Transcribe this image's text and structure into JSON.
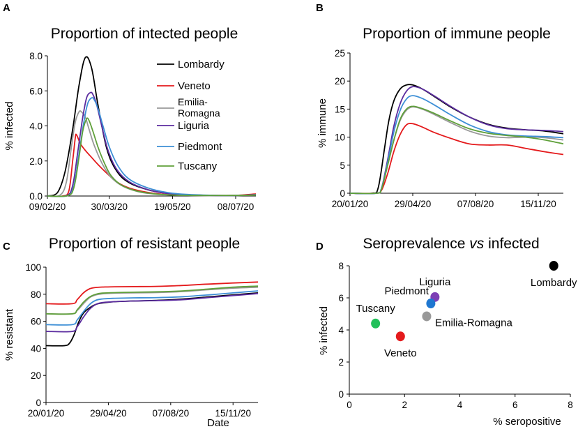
{
  "colors": {
    "Lombardy": "#000000",
    "Veneto": "#e41a1c",
    "Emilia-Romagna": "#999999",
    "Liguria": "#5b2c9f",
    "Piedmont": "#3d8fd6",
    "Tuscany": "#5fa03a",
    "Piedmont_dot": "#1f77d0",
    "Tuscany_dot": "#22c05a"
  },
  "chart_data": [
    {
      "panel": "A",
      "type": "line",
      "title": "Proportion of intected people",
      "ylabel": "% infected",
      "xlabel": "",
      "xlim": [
        0,
        165
      ],
      "ylim": [
        0,
        8
      ],
      "xticks": [
        {
          "label": "09/02/20",
          "x": 0
        },
        {
          "label": "30/03/20",
          "x": 49
        },
        {
          "label": "19/05/20",
          "x": 99
        },
        {
          "label": "08/07/20",
          "x": 149
        }
      ],
      "yticks": [
        {
          "label": "0.0",
          "v": 0
        },
        {
          "label": "2.0",
          "v": 2
        },
        {
          "label": "4.0",
          "v": 4
        },
        {
          "label": "6.0",
          "v": 6
        },
        {
          "label": "8.0",
          "v": 8
        }
      ],
      "legend": {
        "placement": "upper-right",
        "entries": [
          {
            "series": "Lombardy",
            "label": "Lombardy"
          },
          {
            "series": "Veneto",
            "label": "Veneto"
          },
          {
            "series": "Emilia-Romagna",
            "label": "Emilia-",
            "label2": "Romagna"
          },
          {
            "series": "Liguria",
            "label": "Liguria"
          },
          {
            "series": "Piedmont",
            "label": "Piedmont"
          },
          {
            "series": "Tuscany",
            "label": "Tuscany"
          }
        ]
      },
      "series": [
        {
          "name": "Lombardy",
          "x": [
            0,
            8,
            14,
            20,
            25,
            30,
            35,
            40,
            47,
            55,
            65,
            80,
            95,
            110,
            130,
            150,
            165
          ],
          "y": [
            0,
            0.2,
            1.4,
            3.8,
            6.3,
            7.9,
            7.3,
            5.2,
            2.7,
            1.4,
            0.75,
            0.35,
            0.15,
            0.07,
            0.03,
            0.03,
            0.1
          ]
        },
        {
          "name": "Veneto",
          "x": [
            0,
            12,
            17,
            20,
            22,
            23,
            26,
            30,
            35,
            40,
            47,
            55,
            65,
            80,
            95,
            110,
            130,
            150,
            165
          ],
          "y": [
            0,
            0,
            0.3,
            2.0,
            3.3,
            3.5,
            3.0,
            2.6,
            2.2,
            1.8,
            1.3,
            0.8,
            0.45,
            0.2,
            0.08,
            0.04,
            0.03,
            0.04,
            0.12
          ]
        },
        {
          "name": "Emilia-Romagna",
          "x": [
            0,
            10,
            15,
            19,
            22,
            25,
            27,
            30,
            33,
            37,
            43,
            50,
            60,
            75,
            95,
            115,
            140,
            165
          ],
          "y": [
            0,
            0.05,
            0.8,
            2.8,
            4.2,
            4.8,
            4.8,
            4.5,
            3.8,
            2.9,
            1.9,
            1.1,
            0.55,
            0.2,
            0.07,
            0.03,
            0.02,
            0.05
          ]
        },
        {
          "name": "Liguria",
          "x": [
            0,
            15,
            20,
            24,
            28,
            31,
            34,
            36,
            39,
            43,
            48,
            55,
            65,
            80,
            95,
            110,
            130,
            150,
            165
          ],
          "y": [
            0,
            0.02,
            0.6,
            2.5,
            4.5,
            5.6,
            5.9,
            5.8,
            5.2,
            4.0,
            2.6,
            1.5,
            0.8,
            0.35,
            0.15,
            0.07,
            0.03,
            0.03,
            0.08
          ]
        },
        {
          "name": "Piedmont",
          "x": [
            0,
            16,
            21,
            25,
            29,
            32,
            35,
            37,
            40,
            44,
            49,
            56,
            65,
            80,
            95,
            110,
            130,
            150,
            165
          ],
          "y": [
            0,
            0.02,
            0.6,
            2.4,
            4.3,
            5.3,
            5.6,
            5.5,
            5.0,
            4.0,
            2.8,
            1.7,
            0.95,
            0.45,
            0.2,
            0.09,
            0.04,
            0.03,
            0.07
          ]
        },
        {
          "name": "Tuscany",
          "x": [
            0,
            16,
            21,
            25,
            28,
            31,
            33,
            36,
            40,
            45,
            50,
            58,
            70,
            85,
            100,
            120,
            145,
            165
          ],
          "y": [
            0,
            0.02,
            0.5,
            2.2,
            3.7,
            4.4,
            4.3,
            3.7,
            2.8,
            1.9,
            1.2,
            0.65,
            0.3,
            0.12,
            0.05,
            0.03,
            0.03,
            0.05
          ]
        }
      ]
    },
    {
      "panel": "B",
      "type": "line",
      "title": "Proportion of immune people",
      "ylabel": "% immune",
      "xlabel": "",
      "xlim": [
        0,
        340
      ],
      "ylim": [
        0,
        25
      ],
      "xticks": [
        {
          "label": "20/01/20",
          "x": 0
        },
        {
          "label": "29/04/20",
          "x": 100
        },
        {
          "label": "07/08/20",
          "x": 200
        },
        {
          "label": "15/11/20",
          "x": 300
        }
      ],
      "yticks": [
        {
          "label": "0",
          "v": 0
        },
        {
          "label": "5",
          "v": 5
        },
        {
          "label": "10",
          "v": 10
        },
        {
          "label": "15",
          "v": 15
        },
        {
          "label": "20",
          "v": 20
        },
        {
          "label": "25",
          "v": 25
        }
      ],
      "series": [
        {
          "name": "Lombardy",
          "x": [
            0,
            35,
            45,
            55,
            62,
            70,
            80,
            90,
            100,
            115,
            135,
            160,
            190,
            220,
            250,
            280,
            310,
            340
          ],
          "y": [
            0,
            0,
            1,
            8,
            13,
            16.5,
            18.6,
            19.3,
            19.3,
            18.6,
            17.2,
            15.4,
            13.6,
            12.3,
            11.6,
            11.3,
            11.1,
            10.6
          ]
        },
        {
          "name": "Veneto",
          "x": [
            0,
            40,
            50,
            60,
            70,
            80,
            90,
            100,
            115,
            135,
            160,
            190,
            220,
            250,
            280,
            310,
            340
          ],
          "y": [
            0,
            0,
            0.5,
            3.5,
            7.5,
            10.5,
            12.2,
            12.4,
            11.8,
            10.8,
            9.8,
            8.8,
            8.6,
            8.6,
            8.0,
            7.4,
            6.9
          ]
        },
        {
          "name": "Emilia-Romagna",
          "x": [
            0,
            42,
            50,
            60,
            70,
            80,
            90,
            100,
            115,
            135,
            160,
            190,
            220,
            250,
            280,
            310,
            340
          ],
          "y": [
            0,
            0,
            0.8,
            5,
            9.5,
            13,
            14.8,
            15.4,
            15.0,
            14.0,
            12.6,
            11.1,
            10.2,
            9.9,
            10.0,
            9.9,
            9.5
          ]
        },
        {
          "name": "Liguria",
          "x": [
            0,
            42,
            50,
            60,
            70,
            80,
            90,
            100,
            115,
            135,
            160,
            190,
            220,
            250,
            280,
            310,
            340
          ],
          "y": [
            0,
            0,
            0.8,
            6,
            12,
            16,
            18.2,
            19.0,
            18.6,
            17.3,
            15.5,
            13.6,
            12.2,
            11.5,
            11.3,
            11.2,
            11.0
          ]
        },
        {
          "name": "Piedmont",
          "x": [
            0,
            42,
            50,
            60,
            70,
            80,
            90,
            100,
            115,
            135,
            160,
            190,
            220,
            250,
            280,
            310,
            340
          ],
          "y": [
            0,
            0,
            0.8,
            5.5,
            11,
            14.8,
            16.8,
            17.4,
            16.9,
            15.7,
            14.0,
            12.2,
            11.0,
            10.4,
            10.2,
            10.1,
            9.9
          ]
        },
        {
          "name": "Tuscany",
          "x": [
            0,
            42,
            50,
            60,
            70,
            80,
            90,
            100,
            115,
            135,
            160,
            190,
            220,
            250,
            280,
            310,
            340
          ],
          "y": [
            0,
            0,
            0.7,
            5,
            9.5,
            13.2,
            15,
            15.5,
            15.1,
            14.2,
            12.9,
            11.5,
            10.7,
            10.3,
            10.0,
            9.5,
            8.8
          ]
        }
      ]
    },
    {
      "panel": "C",
      "type": "line",
      "title": "Proportion of resistant people",
      "ylabel": "% resistant",
      "xlabel": "Date",
      "xlim": [
        0,
        340
      ],
      "ylim": [
        0,
        100
      ],
      "xticks": [
        {
          "label": "20/01/20",
          "x": 0
        },
        {
          "label": "29/04/20",
          "x": 100
        },
        {
          "label": "07/08/20",
          "x": 200
        },
        {
          "label": "15/11/20",
          "x": 300
        }
      ],
      "yticks": [
        {
          "label": "0",
          "v": 0
        },
        {
          "label": "20",
          "v": 20
        },
        {
          "label": "40",
          "v": 40
        },
        {
          "label": "60",
          "v": 60
        },
        {
          "label": "80",
          "v": 80
        },
        {
          "label": "100",
          "v": 100
        }
      ],
      "series": [
        {
          "name": "Lombardy",
          "x": [
            0,
            30,
            38,
            45,
            52,
            60,
            70,
            80,
            90,
            110,
            140,
            180,
            220,
            260,
            300,
            340
          ],
          "y": [
            42,
            42,
            44,
            50,
            59,
            66,
            70,
            72.5,
            73.5,
            74.5,
            75,
            75.5,
            76.5,
            78,
            79.5,
            81
          ]
        },
        {
          "name": "Veneto",
          "x": [
            0,
            42,
            50,
            60,
            70,
            80,
            90,
            110,
            140,
            180,
            220,
            260,
            300,
            340
          ],
          "y": [
            73,
            73,
            76,
            81,
            84,
            85,
            85.3,
            85.5,
            85.6,
            85.8,
            86.5,
            87.5,
            88.3,
            89
          ]
        },
        {
          "name": "Emilia-Romagna",
          "x": [
            0,
            42,
            50,
            60,
            70,
            80,
            90,
            110,
            140,
            180,
            220,
            260,
            300,
            340
          ],
          "y": [
            65.5,
            65.5,
            68,
            73,
            77.5,
            79.5,
            80.3,
            80.8,
            81,
            81.3,
            82,
            83.3,
            84.5,
            85.2
          ]
        },
        {
          "name": "Liguria",
          "x": [
            0,
            42,
            50,
            60,
            70,
            80,
            90,
            110,
            140,
            180,
            220,
            260,
            300,
            340
          ],
          "y": [
            52.5,
            52.5,
            56,
            63,
            69,
            72.5,
            73.8,
            74.5,
            75,
            75.3,
            76,
            77.5,
            79,
            80.5
          ]
        },
        {
          "name": "Piedmont",
          "x": [
            0,
            42,
            50,
            60,
            70,
            80,
            90,
            110,
            140,
            180,
            220,
            260,
            300,
            340
          ],
          "y": [
            57.5,
            57.5,
            61,
            67,
            72.5,
            75.5,
            76.5,
            77,
            77.3,
            77.5,
            78.2,
            79.5,
            81,
            82.5
          ]
        },
        {
          "name": "Tuscany",
          "x": [
            0,
            42,
            50,
            60,
            70,
            80,
            90,
            110,
            140,
            180,
            220,
            260,
            300,
            340
          ],
          "y": [
            65.5,
            65.5,
            68.5,
            74,
            78,
            80,
            80.8,
            81.2,
            81.5,
            81.8,
            82.5,
            83.8,
            85.2,
            86
          ]
        }
      ]
    },
    {
      "panel": "D",
      "type": "scatter",
      "title": "Seroprevalence",
      "title_italic": "vs",
      "title_end": "infected",
      "xlabel": "% seropositive",
      "ylabel": "% infected",
      "xlim": [
        0,
        8
      ],
      "ylim": [
        0,
        8
      ],
      "xticks": [
        {
          "label": "0",
          "v": 0
        },
        {
          "label": "2",
          "v": 2
        },
        {
          "label": "4",
          "v": 4
        },
        {
          "label": "6",
          "v": 6
        },
        {
          "label": "8",
          "v": 8
        }
      ],
      "yticks": [
        {
          "label": "0",
          "v": 0
        },
        {
          "label": "2",
          "v": 2
        },
        {
          "label": "4",
          "v": 4
        },
        {
          "label": "6",
          "v": 6
        },
        {
          "label": "8",
          "v": 8
        }
      ],
      "points": [
        {
          "name": "Lombardy",
          "x": 7.4,
          "y": 8.0,
          "color": "#000000",
          "label_pos": "below"
        },
        {
          "name": "Liguria",
          "x": 3.1,
          "y": 6.05,
          "color": "#7d3fb5",
          "label_pos": "above"
        },
        {
          "name": "Piedmont",
          "x": 2.95,
          "y": 5.65,
          "color": "#1f77d0",
          "label_pos": "left"
        },
        {
          "name": "Emilia-Romagna",
          "x": 2.8,
          "y": 4.85,
          "color": "#999999",
          "label_pos": "right"
        },
        {
          "name": "Tuscany",
          "x": 0.95,
          "y": 4.4,
          "color": "#22c05a",
          "label_pos": "above"
        },
        {
          "name": "Veneto",
          "x": 1.85,
          "y": 3.6,
          "color": "#e41a1c",
          "label_pos": "below"
        }
      ]
    }
  ],
  "panel_letters": [
    "A",
    "B",
    "C",
    "D"
  ]
}
